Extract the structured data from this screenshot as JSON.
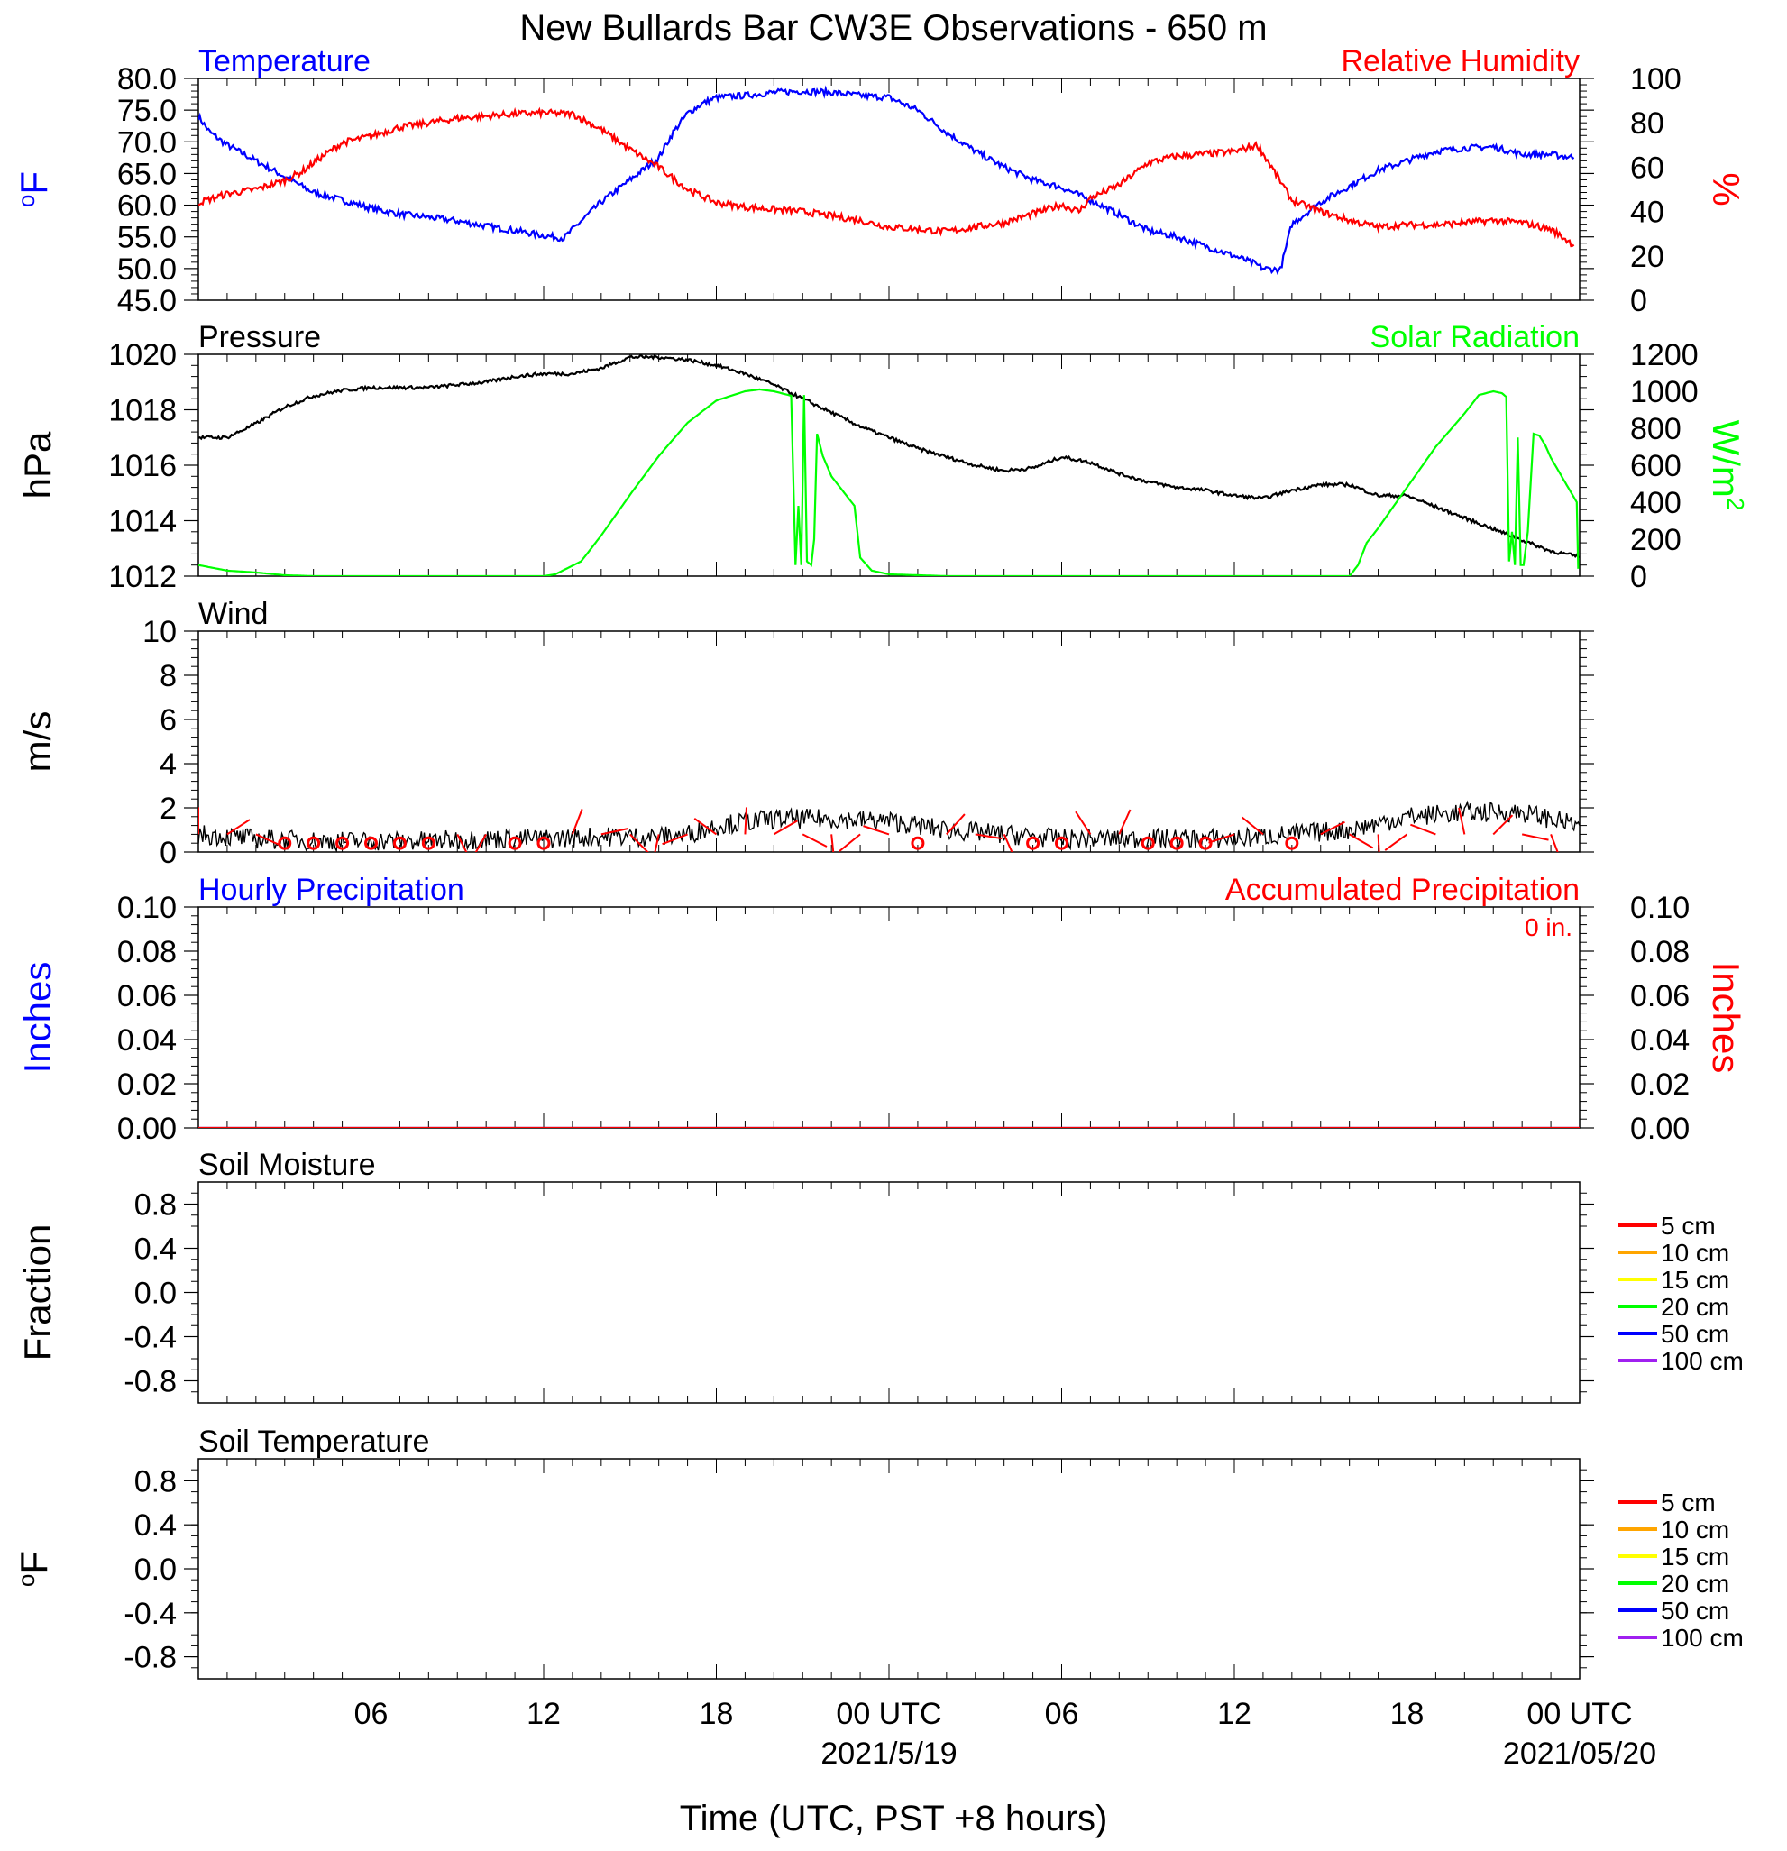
{
  "figure": {
    "title": "New Bullards Bar CW3E Observations - 650 m",
    "xlabel": "Time (UTC, PST +8 hours)",
    "time_axis": {
      "range_hours": [
        0,
        48
      ],
      "tick_labels": [
        {
          "hour": 6,
          "label": "06"
        },
        {
          "hour": 12,
          "label": "12"
        },
        {
          "hour": 18,
          "label": "18"
        },
        {
          "hour": 24,
          "label": "00 UTC",
          "date": "2021/5/19"
        },
        {
          "hour": 30,
          "label": "06"
        },
        {
          "hour": 36,
          "label": "12"
        },
        {
          "hour": 42,
          "label": "18"
        },
        {
          "hour": 48,
          "label": "00 UTC",
          "date": "2021/05/20"
        }
      ]
    },
    "colors": {
      "blue": "#0000ff",
      "red": "#ff0000",
      "green": "#00ff00",
      "black": "#000000"
    }
  },
  "chart_data": [
    {
      "type": "line",
      "panel": "temperature-humidity",
      "title_left": "Temperature",
      "title_right": "Relative Humidity",
      "ylabel_left": "oF",
      "ylabel_right": "%",
      "ylim_left": [
        45,
        80
      ],
      "ylim_right": [
        0,
        100
      ],
      "yticks_left": [
        "45.0",
        "50.0",
        "55.0",
        "60.0",
        "65.0",
        "70.0",
        "75.0",
        "80.0"
      ],
      "yticks_right": [
        "0",
        "20",
        "40",
        "60",
        "80",
        "100"
      ],
      "series": [
        {
          "name": "Temperature",
          "axis": "left",
          "color": "#0000ff",
          "x": [
            0,
            0.4,
            1,
            2,
            3,
            4,
            5,
            6,
            7,
            8,
            9,
            10,
            11,
            12,
            12.7,
            13.3,
            14,
            15,
            16,
            16.5,
            17,
            17.5,
            18,
            19,
            20,
            21,
            22,
            23,
            24,
            25,
            26,
            27,
            28,
            29,
            30,
            31,
            32,
            33,
            34,
            35,
            36,
            36.7,
            37,
            37.6,
            38,
            39,
            40,
            41,
            42,
            43,
            44,
            45,
            46,
            47,
            47.8
          ],
          "y": [
            74,
            71.5,
            69.5,
            67,
            64.5,
            62,
            60.8,
            59.5,
            58.6,
            58.1,
            57.5,
            56.7,
            56,
            55.2,
            54.8,
            57.5,
            60.5,
            64,
            67.5,
            71.5,
            74.5,
            76,
            77,
            77.3,
            77.8,
            78,
            77.8,
            77.3,
            77,
            75,
            71.5,
            68.5,
            66,
            64,
            62.8,
            60.8,
            58.5,
            56,
            55,
            53.5,
            52,
            50.8,
            50,
            49.8,
            57,
            60.5,
            63,
            65.5,
            67,
            68.5,
            69,
            69.2,
            68,
            68,
            67.5
          ]
        },
        {
          "name": "Relative Humidity",
          "axis": "right",
          "color": "#ff0000",
          "x": [
            0,
            1,
            2,
            3,
            3.6,
            4,
            5,
            6,
            7,
            8,
            9,
            10,
            11,
            12,
            13,
            14,
            15,
            16,
            17,
            18,
            19,
            20,
            21,
            22,
            23,
            24,
            25,
            26,
            27,
            28,
            29,
            30,
            30.6,
            31,
            32,
            33,
            34,
            35,
            36,
            36.8,
            37.3,
            38,
            39,
            40,
            41,
            42,
            43,
            44,
            45,
            46,
            47,
            47.8
          ],
          "y": [
            44,
            48,
            50,
            54,
            58,
            62,
            71,
            74,
            78,
            80,
            82,
            83,
            84,
            84.5,
            84,
            77,
            68,
            60,
            50,
            44,
            42,
            41,
            40,
            38,
            36,
            33,
            32,
            31,
            33,
            35,
            39,
            43,
            40,
            46,
            52,
            62,
            65,
            66,
            67,
            70,
            60,
            45,
            40,
            36,
            33,
            34,
            34,
            35,
            36,
            35,
            32,
            25
          ]
        }
      ]
    },
    {
      "type": "line",
      "panel": "pressure-solar",
      "title_left": "Pressure",
      "title_right": "Solar Radiation",
      "ylabel_left": "hPa",
      "ylabel_right": "W/m2",
      "ylim_left": [
        1012,
        1020
      ],
      "ylim_right": [
        0,
        1200
      ],
      "yticks_left": [
        "1012",
        "1014",
        "1016",
        "1018",
        "1020"
      ],
      "yticks_right": [
        "0",
        "200",
        "400",
        "600",
        "800",
        "1000",
        "1200"
      ],
      "series": [
        {
          "name": "Pressure",
          "axis": "left",
          "color": "#000000",
          "x": [
            0,
            1,
            2,
            3,
            4,
            5,
            6,
            7,
            8,
            9,
            10,
            11,
            12,
            13,
            14,
            15,
            16,
            17,
            18,
            19,
            20,
            21,
            22,
            23,
            24,
            25,
            26,
            27,
            28,
            29,
            30,
            31,
            32,
            33,
            34,
            35,
            36,
            37,
            38,
            39,
            40,
            41,
            42,
            43,
            44,
            45,
            46,
            47,
            48
          ],
          "y": [
            1017.0,
            1017.0,
            1017.5,
            1018.1,
            1018.5,
            1018.7,
            1018.8,
            1018.8,
            1018.8,
            1018.9,
            1019.0,
            1019.2,
            1019.3,
            1019.3,
            1019.5,
            1019.9,
            1019.9,
            1019.8,
            1019.6,
            1019.3,
            1018.9,
            1018.4,
            1017.9,
            1017.4,
            1017.0,
            1016.6,
            1016.3,
            1016.0,
            1015.8,
            1015.9,
            1016.3,
            1016.1,
            1015.7,
            1015.4,
            1015.2,
            1015.1,
            1014.9,
            1014.8,
            1015.1,
            1015.3,
            1015.3,
            1014.9,
            1014.9,
            1014.5,
            1014.1,
            1013.7,
            1013.3,
            1012.9,
            1012.7
          ]
        },
        {
          "name": "Solar Radiation",
          "axis": "right",
          "color": "#00ff00",
          "x": [
            0,
            1,
            2,
            3,
            4,
            12,
            12.4,
            13.3,
            14,
            15,
            16,
            17,
            18,
            19,
            19.5,
            20,
            20.5,
            20.6,
            20.75,
            20.85,
            20.95,
            21.05,
            21.15,
            21.3,
            21.4,
            21.5,
            21.7,
            22,
            22.8,
            23,
            23.4,
            24,
            26,
            40,
            40.3,
            40.6,
            41,
            42,
            43,
            44,
            44.5,
            45,
            45.3,
            45.45,
            45.55,
            45.65,
            45.75,
            45.85,
            45.95,
            46.05,
            46.2,
            46.4,
            46.6,
            46.8,
            47,
            47.3,
            47.9,
            47.95
          ],
          "y": [
            60,
            30,
            20,
            5,
            0,
            0,
            10,
            80,
            220,
            440,
            650,
            830,
            950,
            1000,
            1010,
            1000,
            980,
            975,
            60,
            380,
            60,
            980,
            80,
            60,
            200,
            770,
            650,
            540,
            380,
            100,
            30,
            10,
            0,
            0,
            60,
            180,
            260,
            480,
            700,
            880,
            980,
            1000,
            990,
            970,
            80,
            240,
            60,
            750,
            60,
            60,
            240,
            770,
            760,
            710,
            640,
            560,
            400,
            40
          ]
        }
      ]
    },
    {
      "type": "line",
      "panel": "wind",
      "title_left": "Wind",
      "ylabel_left": "m/s",
      "ylim_left": [
        0,
        10
      ],
      "yticks_left": [
        "0",
        "2",
        "4",
        "6",
        "8",
        "10"
      ],
      "series": [
        {
          "name": "Wind",
          "axis": "left",
          "color": "#000000",
          "x": [
            0,
            2,
            4,
            6,
            8,
            10,
            12,
            14,
            16,
            17,
            18,
            20,
            22,
            24,
            26,
            28,
            30,
            32,
            34,
            36,
            38,
            40,
            42,
            44,
            46,
            48
          ],
          "y": [
            0.8,
            0.6,
            0.5,
            0.5,
            0.5,
            0.6,
            0.6,
            0.7,
            0.7,
            0.8,
            1.2,
            1.5,
            1.5,
            1.4,
            1.0,
            0.8,
            0.6,
            0.6,
            0.6,
            0.6,
            0.8,
            1.0,
            1.6,
            1.8,
            1.8,
            1.2
          ]
        }
      ],
      "calm_markers_hours": [
        3,
        4,
        5,
        6,
        7,
        8,
        11,
        12,
        25,
        29,
        30,
        33,
        34,
        35,
        38
      ]
    },
    {
      "type": "bar",
      "panel": "precipitation",
      "title_left": "Hourly Precipitation",
      "title_right": "Accumulated Precipitation",
      "annotation": "0 in.",
      "ylabel_left": "Inches",
      "ylabel_right": "Inches",
      "ylim_left": [
        0,
        0.1
      ],
      "ylim_right": [
        0,
        0.1
      ],
      "yticks_left": [
        "0.00",
        "0.02",
        "0.04",
        "0.06",
        "0.08",
        "0.10"
      ],
      "yticks_right": [
        "0.00",
        "0.02",
        "0.04",
        "0.06",
        "0.08",
        "0.10"
      ],
      "series": [
        {
          "name": "Hourly Precipitation",
          "axis": "left",
          "color": "#0000ff",
          "x": [
            0,
            48
          ],
          "y": [
            0,
            0
          ]
        },
        {
          "name": "Accumulated Precipitation",
          "axis": "right",
          "color": "#ff0000",
          "x": [
            0,
            48
          ],
          "y": [
            0,
            0
          ]
        }
      ]
    },
    {
      "type": "line",
      "panel": "soil-moisture",
      "title_left": "Soil Moisture",
      "ylabel_left": "Fraction",
      "ylim_left": [
        -1,
        1
      ],
      "yticks_left": [
        "-0.8",
        "-0.4",
        "0.0",
        "0.4",
        "0.8"
      ],
      "legend": [
        {
          "label": "5 cm",
          "color": "#ff0000"
        },
        {
          "label": "10 cm",
          "color": "#ffa500"
        },
        {
          "label": "15 cm",
          "color": "#ffff00"
        },
        {
          "label": "20 cm",
          "color": "#00ff00"
        },
        {
          "label": "50 cm",
          "color": "#0000ff"
        },
        {
          "label": "100 cm",
          "color": "#a020f0"
        }
      ],
      "series": []
    },
    {
      "type": "line",
      "panel": "soil-temperature",
      "title_left": "Soil Temperature",
      "ylabel_left": "oF",
      "ylim_left": [
        -1,
        1
      ],
      "yticks_left": [
        "-0.8",
        "-0.4",
        "0.0",
        "0.4",
        "0.8"
      ],
      "legend": [
        {
          "label": "5 cm",
          "color": "#ff0000"
        },
        {
          "label": "10 cm",
          "color": "#ffa500"
        },
        {
          "label": "15 cm",
          "color": "#ffff00"
        },
        {
          "label": "20 cm",
          "color": "#00ff00"
        },
        {
          "label": "50 cm",
          "color": "#0000ff"
        },
        {
          "label": "100 cm",
          "color": "#a020f0"
        }
      ],
      "series": []
    }
  ]
}
